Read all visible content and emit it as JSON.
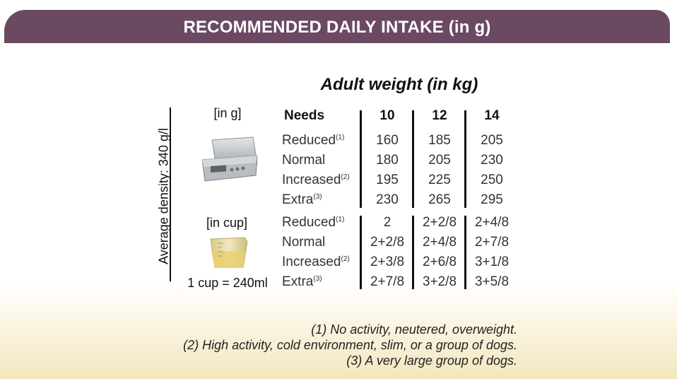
{
  "header": {
    "title": "RECOMMENDED DAILY INTAKE (in g)"
  },
  "subtitle": "Adult weight (in kg)",
  "side_label": "Average density: 340 g/l",
  "labels": {
    "grams_unit": "[in g]",
    "cup_unit": "[in cup]",
    "cup_note": "1 cup = 240ml",
    "needs_header": "Needs"
  },
  "weights": [
    "10",
    "12",
    "14"
  ],
  "needs": [
    {
      "label": "Reduced",
      "note": "(1)"
    },
    {
      "label": "Normal",
      "note": ""
    },
    {
      "label": "Increased",
      "note": "(2)"
    },
    {
      "label": "Extra",
      "note": "(3)"
    }
  ],
  "grams": [
    [
      "160",
      "185",
      "205"
    ],
    [
      "180",
      "205",
      "230"
    ],
    [
      "195",
      "225",
      "250"
    ],
    [
      "230",
      "265",
      "295"
    ]
  ],
  "cups": [
    [
      "2",
      "2+2/8",
      "2+4/8"
    ],
    [
      "2+2/8",
      "2+4/8",
      "2+7/8"
    ],
    [
      "2+3/8",
      "2+6/8",
      "3+1/8"
    ],
    [
      "2+7/8",
      "3+2/8",
      "3+5/8"
    ]
  ],
  "footnotes": [
    "(1) No activity, neutered, overweight.",
    "(2) High activity, cold environment, slim, or a group of dogs.",
    "(3) A very large group of dogs."
  ],
  "icons": {
    "scale": "kitchen-scale-icon",
    "cup": "measuring-cup-icon"
  },
  "colors": {
    "banner": "#6b4a61",
    "footer_cream": "#f3e7bf"
  }
}
